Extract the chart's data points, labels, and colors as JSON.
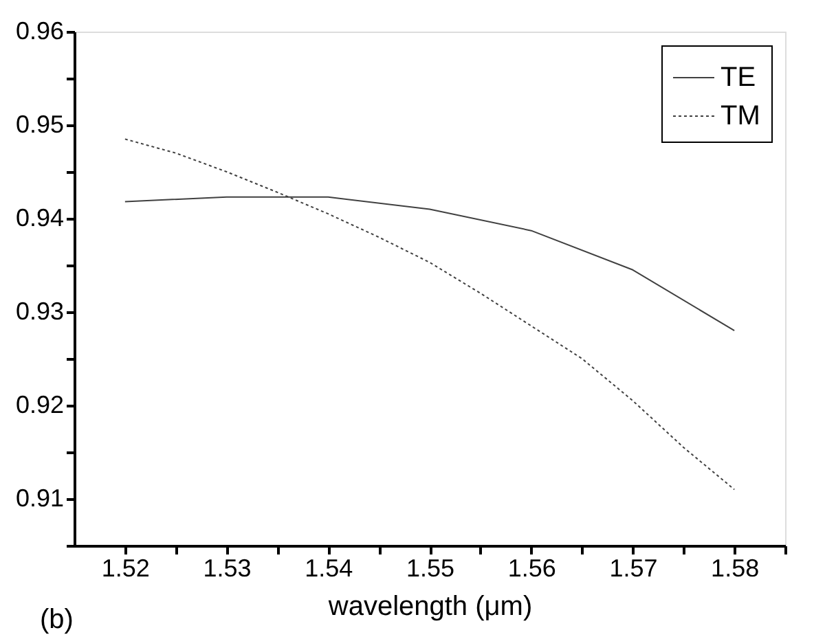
{
  "chart_data": {
    "type": "line",
    "xlabel": "wavelength (μm)",
    "annotations": [
      "(b)"
    ],
    "xlim": [
      1.515,
      1.585
    ],
    "ylim": [
      0.905,
      0.96
    ],
    "xticks": [
      1.52,
      {
        "value": 1.525,
        "label": null
      },
      1.53,
      {
        "value": 1.535,
        "label": null
      },
      1.54,
      {
        "value": 1.545,
        "label": null
      },
      1.55,
      {
        "value": 1.555,
        "label": null
      },
      1.56,
      {
        "value": 1.565,
        "label": null
      },
      1.57,
      {
        "value": 1.575,
        "label": null
      },
      1.58,
      {
        "value": 1.585,
        "label": null
      }
    ],
    "yticks": [
      {
        "value": 0.905,
        "label": null
      },
      0.91,
      {
        "value": 0.915,
        "label": null
      },
      0.92,
      {
        "value": 0.925,
        "label": null
      },
      0.93,
      {
        "value": 0.935,
        "label": null
      },
      0.94,
      {
        "value": 0.945,
        "label": null
      },
      0.95,
      {
        "value": 0.955,
        "label": null
      },
      0.96
    ],
    "grid": false,
    "legend": "top right",
    "marker": "none",
    "series": [
      {
        "name": "TE",
        "color": "#404040",
        "line_style": "solid",
        "x": [
          1.52,
          1.53,
          1.54,
          1.55,
          1.56,
          1.57,
          1.58
        ],
        "values": [
          0.9418,
          0.9423,
          0.9423,
          0.941,
          0.9387,
          0.9345,
          0.928
        ]
      },
      {
        "name": "TM",
        "color": "#404040",
        "line_style": "dotted",
        "x": [
          1.52,
          1.525,
          1.53,
          1.535,
          1.54,
          1.545,
          1.55,
          1.555,
          1.56,
          1.565,
          1.57,
          1.575,
          1.58
        ],
        "values": [
          0.9485,
          0.947,
          0.945,
          0.9428,
          0.9405,
          0.938,
          0.9353,
          0.932,
          0.9285,
          0.925,
          0.9205,
          0.9155,
          0.911
        ]
      }
    ]
  }
}
